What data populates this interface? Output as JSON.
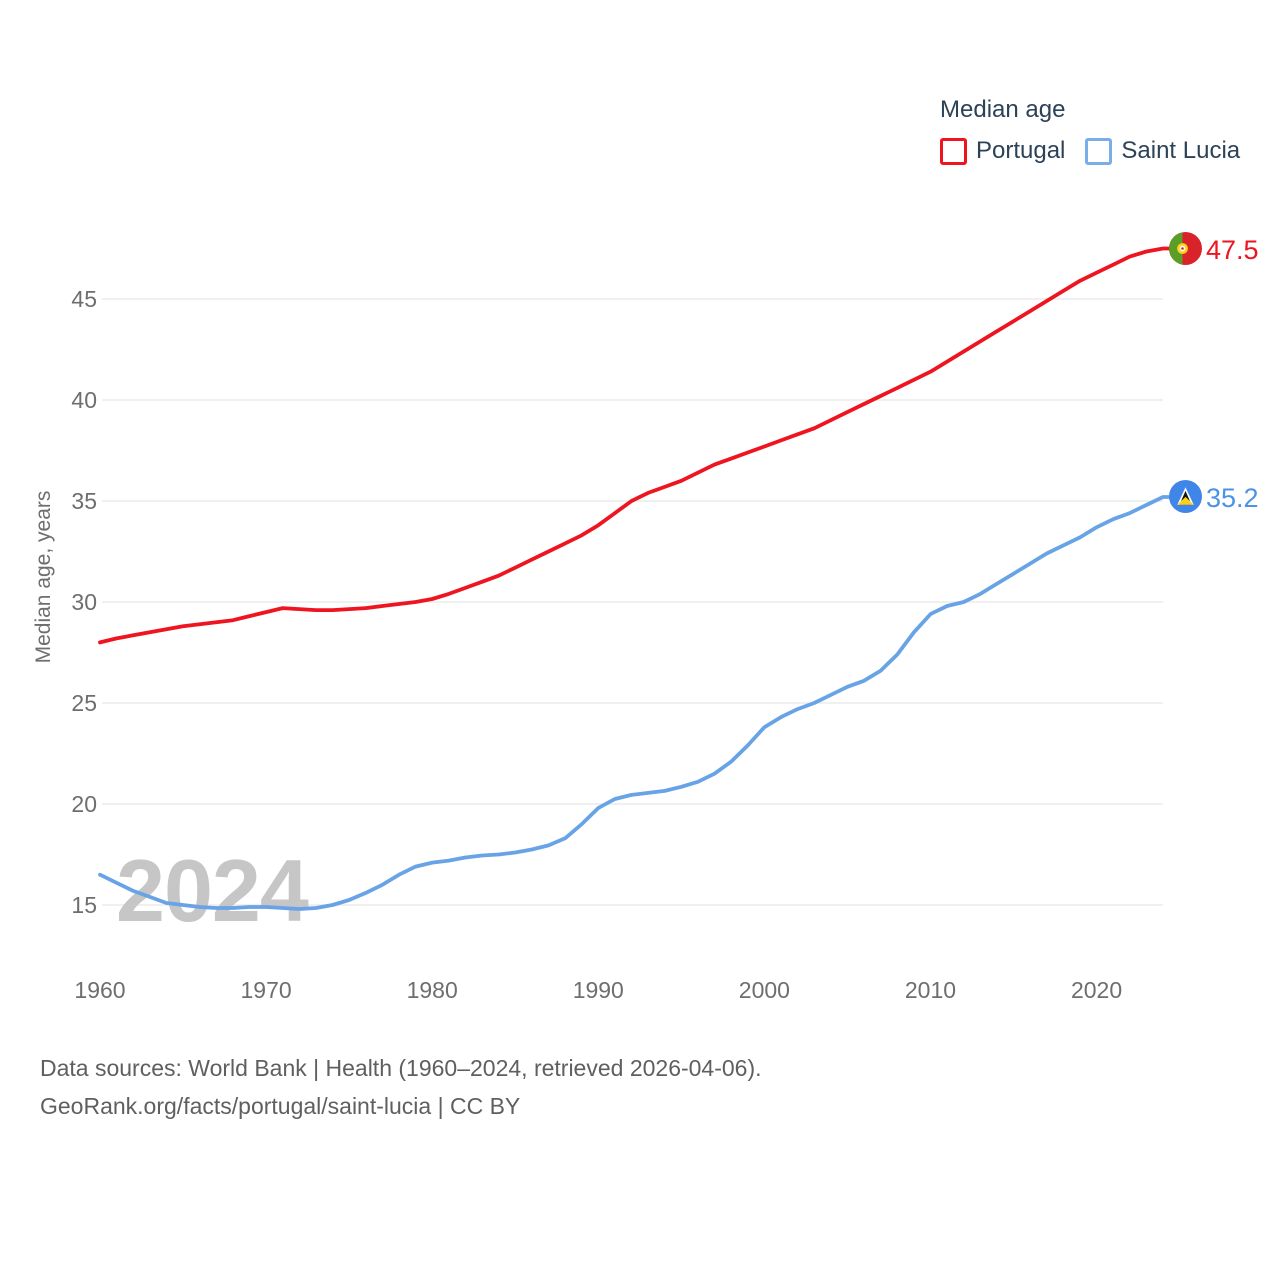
{
  "legend": {
    "title": "Median age",
    "items": [
      {
        "label": "Portugal",
        "color": "#ee1420"
      },
      {
        "label": "Saint Lucia",
        "color": "#79aeea"
      }
    ]
  },
  "chart_data": {
    "type": "line",
    "title": "Median age",
    "ylabel": "Median age, years",
    "watermark": "2024",
    "x_start": 1960,
    "x_end": 2024,
    "xticks": [
      1960,
      1970,
      1980,
      1990,
      2000,
      2010,
      2020
    ],
    "yticks": [
      15,
      20,
      25,
      30,
      35,
      40,
      45
    ],
    "ylim": [
      13.2,
      48.5
    ],
    "grid": true,
    "legend_position": "top-right",
    "series": [
      {
        "name": "Portugal",
        "color": "#ee1420",
        "label_color": "#ee1420",
        "end_label": "47.5",
        "values": [
          28.0,
          28.2,
          28.35,
          28.5,
          28.65,
          28.8,
          28.9,
          29.0,
          29.1,
          29.3,
          29.5,
          29.7,
          29.65,
          29.6,
          29.6,
          29.65,
          29.7,
          29.8,
          29.9,
          30.0,
          30.15,
          30.4,
          30.7,
          31.0,
          31.3,
          31.7,
          32.1,
          32.5,
          32.9,
          33.3,
          33.8,
          34.4,
          35.0,
          35.4,
          35.7,
          36.0,
          36.4,
          36.8,
          37.1,
          37.4,
          37.7,
          38.0,
          38.3,
          38.6,
          39.0,
          39.4,
          39.8,
          40.2,
          40.6,
          41.0,
          41.4,
          41.9,
          42.4,
          42.9,
          43.4,
          43.9,
          44.4,
          44.9,
          45.4,
          45.9,
          46.3,
          46.7,
          47.1,
          47.35,
          47.5
        ]
      },
      {
        "name": "Saint Lucia",
        "color": "#68a3e6",
        "label_color": "#4b93e6",
        "end_label": "35.2",
        "values": [
          16.5,
          16.1,
          15.7,
          15.4,
          15.1,
          15.0,
          14.9,
          14.85,
          14.85,
          14.9,
          14.9,
          14.85,
          14.8,
          14.85,
          15.0,
          15.25,
          15.6,
          16.0,
          16.5,
          16.9,
          17.1,
          17.2,
          17.35,
          17.45,
          17.5,
          17.6,
          17.75,
          17.95,
          18.3,
          19.0,
          19.8,
          20.25,
          20.45,
          20.55,
          20.65,
          20.85,
          21.1,
          21.5,
          22.1,
          22.9,
          23.8,
          24.3,
          24.7,
          25.0,
          25.4,
          25.8,
          26.1,
          26.6,
          27.4,
          28.5,
          29.4,
          29.8,
          30.0,
          30.4,
          30.9,
          31.4,
          31.9,
          32.4,
          32.8,
          33.2,
          33.7,
          34.1,
          34.4,
          34.8,
          35.2
        ]
      }
    ]
  },
  "footer": {
    "line1": "Data sources: World Bank | Health (1960–2024, retrieved 2026-04-06).",
    "line2": "GeoRank.org/facts/portugal/saint-lucia | CC BY"
  }
}
